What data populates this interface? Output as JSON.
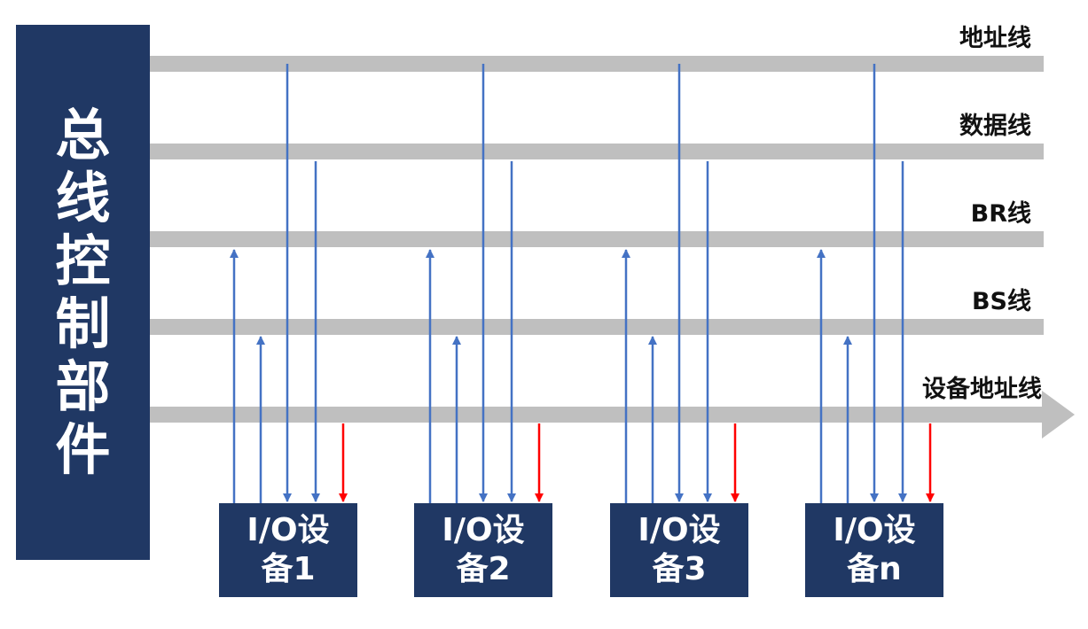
{
  "controller": {
    "label_chars": [
      "总",
      "线",
      "控",
      "制",
      "部",
      "件"
    ]
  },
  "buses": [
    {
      "label": "地址线"
    },
    {
      "label": "数据线"
    },
    {
      "label": "BR线"
    },
    {
      "label": "BS线"
    },
    {
      "label": "设备地址线"
    }
  ],
  "devices": [
    {
      "line1": "I/O设",
      "line2": "备1"
    },
    {
      "line1": "I/O设",
      "line2": "备2"
    },
    {
      "line1": "I/O设",
      "line2": "备3"
    },
    {
      "line1": "I/O设",
      "line2": "备n"
    }
  ],
  "colors": {
    "box": "#203864",
    "bus": "#bfbfbf",
    "signal": "#4472c4",
    "grant": "#ff0000"
  }
}
